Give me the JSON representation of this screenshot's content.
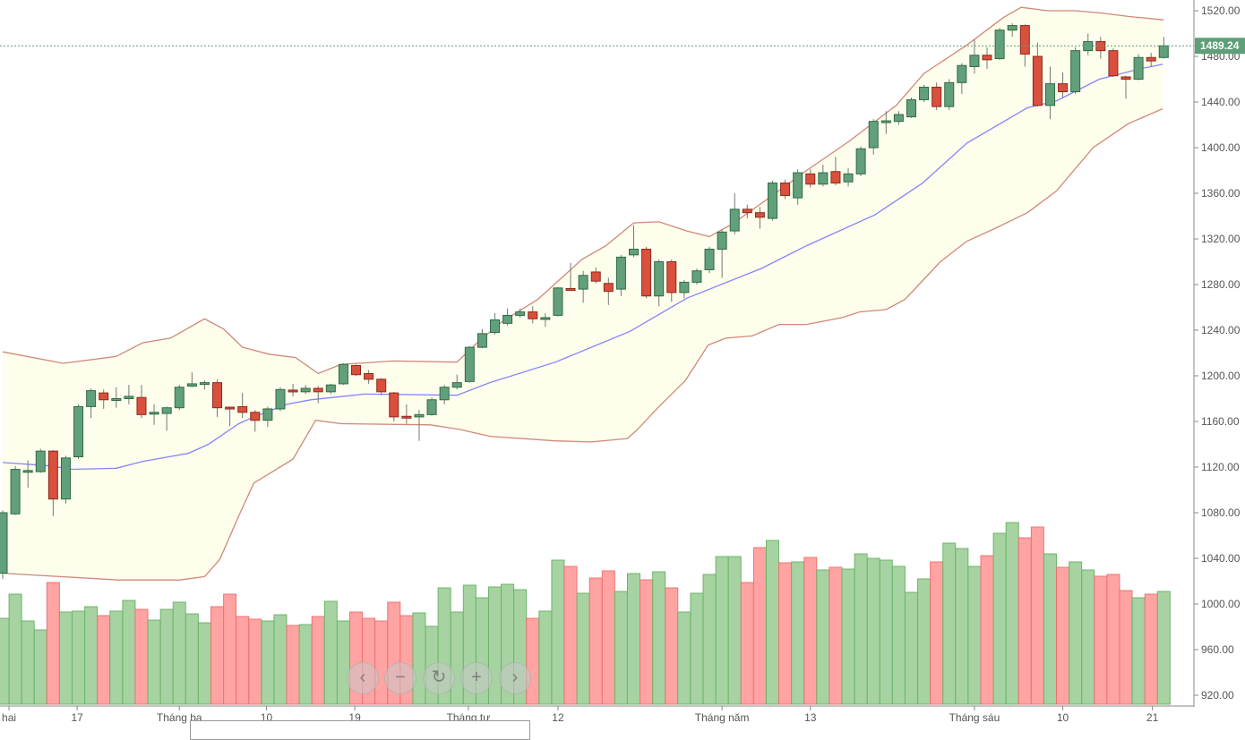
{
  "chart_data": {
    "type": "candlestick",
    "indicators": [
      "bollinger-bands-20-2",
      "volume"
    ],
    "y_ticks": [
      1520,
      1480,
      1440,
      1400,
      1360,
      1320,
      1280,
      1240,
      1200,
      1160,
      1120,
      1080,
      1040,
      1000,
      960,
      920
    ],
    "y_tick_labels": [
      "1520.00",
      "1480.00",
      "1440.00",
      "1400.00",
      "1360.00",
      "1320.00",
      "1280.00",
      "1240.00",
      "1200.00",
      "1160.00",
      "1120.00",
      "1080.00",
      "1040.00",
      "1000.00",
      "960.00",
      "920.00"
    ],
    "ylim": [
      910,
      1530
    ],
    "last_price": 1489.24,
    "last_price_label": "1489.24",
    "x_ticks": [
      {
        "index": 0.5,
        "label": "hai"
      },
      {
        "index": 5.9,
        "label": "17"
      },
      {
        "index": 14,
        "label": "Tháng ba"
      },
      {
        "index": 20.9,
        "label": "10"
      },
      {
        "index": 27.9,
        "label": "19"
      },
      {
        "index": 36.9,
        "label": "Tháng tư"
      },
      {
        "index": 44,
        "label": "12"
      },
      {
        "index": 57,
        "label": "Tháng năm"
      },
      {
        "index": 64,
        "label": "13"
      },
      {
        "index": 77,
        "label": "Tháng sáu"
      },
      {
        "index": 84,
        "label": "10"
      },
      {
        "index": 91.1,
        "label": "21"
      }
    ],
    "ohlc": [
      [
        1027,
        1082,
        1022,
        1080
      ],
      [
        1079,
        1121,
        1078,
        1118
      ],
      [
        1116,
        1126,
        1102,
        1117
      ],
      [
        1116,
        1136,
        1115,
        1134
      ],
      [
        1134,
        1135,
        1077,
        1092
      ],
      [
        1092,
        1130,
        1088,
        1128
      ],
      [
        1129,
        1175,
        1127,
        1173
      ],
      [
        1173,
        1189,
        1163,
        1187
      ],
      [
        1185,
        1188,
        1171,
        1179
      ],
      [
        1179,
        1190,
        1172,
        1180
      ],
      [
        1180,
        1192,
        1175,
        1182
      ],
      [
        1181,
        1192,
        1163,
        1166
      ],
      [
        1167,
        1175,
        1157,
        1168
      ],
      [
        1167,
        1173,
        1152,
        1172
      ],
      [
        1172,
        1192,
        1170,
        1190
      ],
      [
        1191,
        1203,
        1190,
        1193
      ],
      [
        1193,
        1196,
        1188,
        1194
      ],
      [
        1194,
        1197,
        1164,
        1172
      ],
      [
        1172.5,
        1173,
        1156,
        1172
      ],
      [
        1173,
        1185,
        1163,
        1168
      ],
      [
        1168,
        1170,
        1151,
        1161
      ],
      [
        1161,
        1173,
        1155,
        1171
      ],
      [
        1171,
        1190,
        1169,
        1188
      ],
      [
        1187.5,
        1193,
        1182,
        1187
      ],
      [
        1186,
        1192,
        1184,
        1189
      ],
      [
        1189,
        1191,
        1176,
        1186
      ],
      [
        1186,
        1193,
        1184,
        1192
      ],
      [
        1193,
        1211,
        1192,
        1210
      ],
      [
        1209,
        1210,
        1200,
        1201
      ],
      [
        1202,
        1205,
        1193,
        1197
      ],
      [
        1197,
        1198,
        1183,
        1186
      ],
      [
        1185,
        1186,
        1160,
        1164
      ],
      [
        1164.5,
        1175,
        1158,
        1164
      ],
      [
        1164,
        1170,
        1143,
        1166
      ],
      [
        1166,
        1181,
        1165,
        1179
      ],
      [
        1179,
        1192,
        1175,
        1190
      ],
      [
        1190,
        1201,
        1188,
        1194
      ],
      [
        1195,
        1226,
        1194,
        1225
      ],
      [
        1225,
        1241,
        1224,
        1237
      ],
      [
        1238,
        1255,
        1236,
        1249
      ],
      [
        1246,
        1259,
        1244,
        1253
      ],
      [
        1253,
        1259,
        1251,
        1256
      ],
      [
        1256,
        1261,
        1246,
        1250
      ],
      [
        1250.5,
        1255,
        1243,
        1251
      ],
      [
        1253,
        1278,
        1252,
        1277
      ],
      [
        1276.5,
        1299,
        1276,
        1276
      ],
      [
        1276,
        1292,
        1264,
        1288
      ],
      [
        1291,
        1295,
        1281,
        1283
      ],
      [
        1281,
        1286,
        1262,
        1274
      ],
      [
        1276,
        1306,
        1270,
        1304
      ],
      [
        1306,
        1332,
        1304,
        1311
      ],
      [
        1311,
        1313,
        1268,
        1270
      ],
      [
        1270,
        1302,
        1261,
        1300
      ],
      [
        1300,
        1302,
        1265,
        1273
      ],
      [
        1273,
        1284,
        1268,
        1282
      ],
      [
        1282,
        1294,
        1280,
        1292
      ],
      [
        1293,
        1313,
        1290,
        1311
      ],
      [
        1311,
        1328,
        1286,
        1326
      ],
      [
        1327,
        1360,
        1324,
        1346
      ],
      [
        1346,
        1350,
        1338,
        1343
      ],
      [
        1343,
        1348,
        1329,
        1339
      ],
      [
        1338,
        1371,
        1336,
        1369
      ],
      [
        1369,
        1372,
        1355,
        1358
      ],
      [
        1356,
        1381,
        1350,
        1378
      ],
      [
        1377,
        1381,
        1365,
        1368
      ],
      [
        1368,
        1385,
        1366,
        1378
      ],
      [
        1379,
        1392,
        1367,
        1369
      ],
      [
        1370,
        1382,
        1366,
        1377
      ],
      [
        1377,
        1401,
        1375,
        1399
      ],
      [
        1400,
        1425,
        1394,
        1423
      ],
      [
        1423,
        1432,
        1412,
        1423.5
      ],
      [
        1423,
        1432,
        1420,
        1429
      ],
      [
        1427,
        1444,
        1426,
        1442
      ],
      [
        1442,
        1455,
        1440,
        1453
      ],
      [
        1453,
        1457,
        1433,
        1436
      ],
      [
        1436,
        1460,
        1433,
        1457
      ],
      [
        1457,
        1474,
        1447,
        1472
      ],
      [
        1471,
        1495,
        1465,
        1481
      ],
      [
        1481,
        1488,
        1469,
        1477
      ],
      [
        1478,
        1505,
        1477,
        1503
      ],
      [
        1503,
        1509,
        1497,
        1507
      ],
      [
        1507,
        1508,
        1471,
        1482
      ],
      [
        1480,
        1492,
        1436,
        1437
      ],
      [
        1437,
        1471,
        1425,
        1456
      ],
      [
        1456,
        1466,
        1444,
        1449
      ],
      [
        1449,
        1488,
        1447,
        1485
      ],
      [
        1485,
        1500,
        1481,
        1493
      ],
      [
        1493,
        1497,
        1478,
        1485
      ],
      [
        1485,
        1487,
        1462,
        1463
      ],
      [
        1462,
        1463,
        1443,
        1460
      ],
      [
        1460,
        1482,
        1459,
        1479
      ],
      [
        1479,
        1483,
        1471,
        1476
      ],
      [
        1479,
        1497,
        1478,
        1489.24
      ]
    ],
    "volume_relative": [
      96,
      123,
      93,
      83,
      136,
      103,
      104,
      109,
      99,
      104,
      116,
      106,
      94,
      106,
      114,
      101,
      91,
      109,
      123,
      98,
      95,
      93,
      100,
      88,
      89,
      98,
      115,
      93,
      103,
      96,
      93,
      114,
      99,
      102,
      87,
      130,
      103,
      133,
      119,
      131,
      134,
      128,
      96,
      104,
      161,
      154,
      124,
      141,
      149,
      126,
      146,
      139,
      148,
      130,
      103,
      124,
      145,
      165,
      165,
      136,
      175,
      183,
      158,
      159,
      164,
      150,
      153,
      151,
      168,
      163,
      161,
      154,
      125,
      140,
      159,
      180,
      174,
      154,
      166,
      191,
      203,
      186,
      198,
      168,
      153,
      159,
      150,
      143,
      145,
      127,
      119,
      123,
      126
    ],
    "volume_up": [
      1,
      1,
      1,
      1,
      0,
      1,
      1,
      1,
      0,
      1,
      1,
      0,
      1,
      1,
      1,
      1,
      1,
      0,
      0,
      0,
      0,
      1,
      1,
      0,
      1,
      0,
      1,
      1,
      0,
      0,
      0,
      0,
      0,
      1,
      1,
      1,
      1,
      1,
      1,
      1,
      1,
      1,
      0,
      1,
      1,
      0,
      1,
      0,
      0,
      1,
      1,
      0,
      1,
      0,
      1,
      1,
      1,
      1,
      1,
      0,
      0,
      1,
      0,
      1,
      0,
      1,
      0,
      1,
      1,
      1,
      1,
      1,
      1,
      1,
      0,
      1,
      1,
      1,
      0,
      1,
      1,
      0,
      0,
      1,
      0,
      1,
      1,
      0,
      0,
      0,
      1,
      0,
      1
    ],
    "bollinger": {
      "upper": [
        [
          0,
          1221
        ],
        [
          4.8,
          1211
        ],
        [
          9,
          1217
        ],
        [
          11.1,
          1229
        ],
        [
          13.3,
          1233
        ],
        [
          16,
          1250
        ],
        [
          17.5,
          1241
        ],
        [
          19,
          1225
        ],
        [
          21.1,
          1219
        ],
        [
          23.2,
          1216
        ],
        [
          25,
          1202
        ],
        [
          26.8,
          1210
        ],
        [
          31,
          1213
        ],
        [
          36,
          1212
        ],
        [
          37.4,
          1227
        ],
        [
          39.5,
          1247
        ],
        [
          42.4,
          1267
        ],
        [
          45.9,
          1302
        ],
        [
          47.8,
          1314
        ],
        [
          50,
          1334
        ],
        [
          52,
          1335
        ],
        [
          54.2,
          1327
        ],
        [
          56,
          1322
        ],
        [
          57.8,
          1333
        ],
        [
          60.1,
          1351
        ],
        [
          63.7,
          1380
        ],
        [
          67,
          1405
        ],
        [
          70.8,
          1437
        ],
        [
          73,
          1465
        ],
        [
          76.4,
          1490
        ],
        [
          79.3,
          1514
        ],
        [
          80.7,
          1523
        ],
        [
          82.8,
          1520
        ],
        [
          85,
          1520
        ],
        [
          87.1,
          1518
        ],
        [
          89.2,
          1515
        ],
        [
          92,
          1512
        ]
      ],
      "middle": [
        [
          0,
          1124
        ],
        [
          3.8,
          1121
        ],
        [
          5.5,
          1118
        ],
        [
          9,
          1119
        ],
        [
          11.1,
          1125
        ],
        [
          14.7,
          1132
        ],
        [
          16.3,
          1140
        ],
        [
          18.7,
          1158
        ],
        [
          19.7,
          1163
        ],
        [
          22.5,
          1175
        ],
        [
          24.4,
          1179
        ],
        [
          28.7,
          1184
        ],
        [
          36,
          1183
        ],
        [
          38.6,
          1194
        ],
        [
          43.8,
          1212
        ],
        [
          49.7,
          1239
        ],
        [
          54.2,
          1268
        ],
        [
          60.1,
          1294
        ],
        [
          63.7,
          1314
        ],
        [
          69.1,
          1341
        ],
        [
          72.9,
          1369
        ],
        [
          76.4,
          1404
        ],
        [
          81.2,
          1435
        ],
        [
          83.5,
          1441
        ],
        [
          86.9,
          1460
        ],
        [
          90.1,
          1469
        ],
        [
          91.9,
          1473
        ]
      ],
      "lower": [
        [
          0,
          1027
        ],
        [
          9.2,
          1021
        ],
        [
          14,
          1021
        ],
        [
          16,
          1024
        ],
        [
          17.2,
          1039
        ],
        [
          18.7,
          1077
        ],
        [
          19.9,
          1106
        ],
        [
          21.1,
          1114
        ],
        [
          23,
          1127
        ],
        [
          24.8,
          1161
        ],
        [
          26.8,
          1158
        ],
        [
          33.9,
          1157
        ],
        [
          36.2,
          1153
        ],
        [
          38.6,
          1147
        ],
        [
          43.8,
          1143
        ],
        [
          46.6,
          1142
        ],
        [
          49.5,
          1145
        ],
        [
          50.3,
          1153
        ],
        [
          52,
          1173
        ],
        [
          54.1,
          1196
        ],
        [
          55.9,
          1227
        ],
        [
          57.3,
          1233
        ],
        [
          59.4,
          1235
        ],
        [
          61.5,
          1245
        ],
        [
          63.7,
          1245
        ],
        [
          66.5,
          1251
        ],
        [
          67.9,
          1256
        ],
        [
          70,
          1258
        ],
        [
          71.5,
          1267
        ],
        [
          74.3,
          1300
        ],
        [
          76.4,
          1318
        ],
        [
          78.6,
          1329
        ],
        [
          81.2,
          1343
        ],
        [
          83.5,
          1362
        ],
        [
          86.4,
          1400
        ],
        [
          89.2,
          1421
        ],
        [
          91.9,
          1434
        ]
      ]
    },
    "colors": {
      "up_body": "#62a07b",
      "up_border": "#2f6b45",
      "down_body": "#d9503c",
      "down_border": "#8b2a1f",
      "vol_up": "#a6d3a1",
      "vol_up_border": "#6cb56a",
      "vol_down": "#ffa3a3",
      "vol_down_border": "#f07373",
      "band_fill": "#fefeec",
      "band_line": "#d08878",
      "mid_line": "#8484ff",
      "price_tag": "#5e9e78"
    }
  },
  "nav": {
    "prev_icon": "‹",
    "zoom_out_icon": "−",
    "reset_icon": "↻",
    "zoom_in_icon": "+",
    "next_icon": "›"
  }
}
